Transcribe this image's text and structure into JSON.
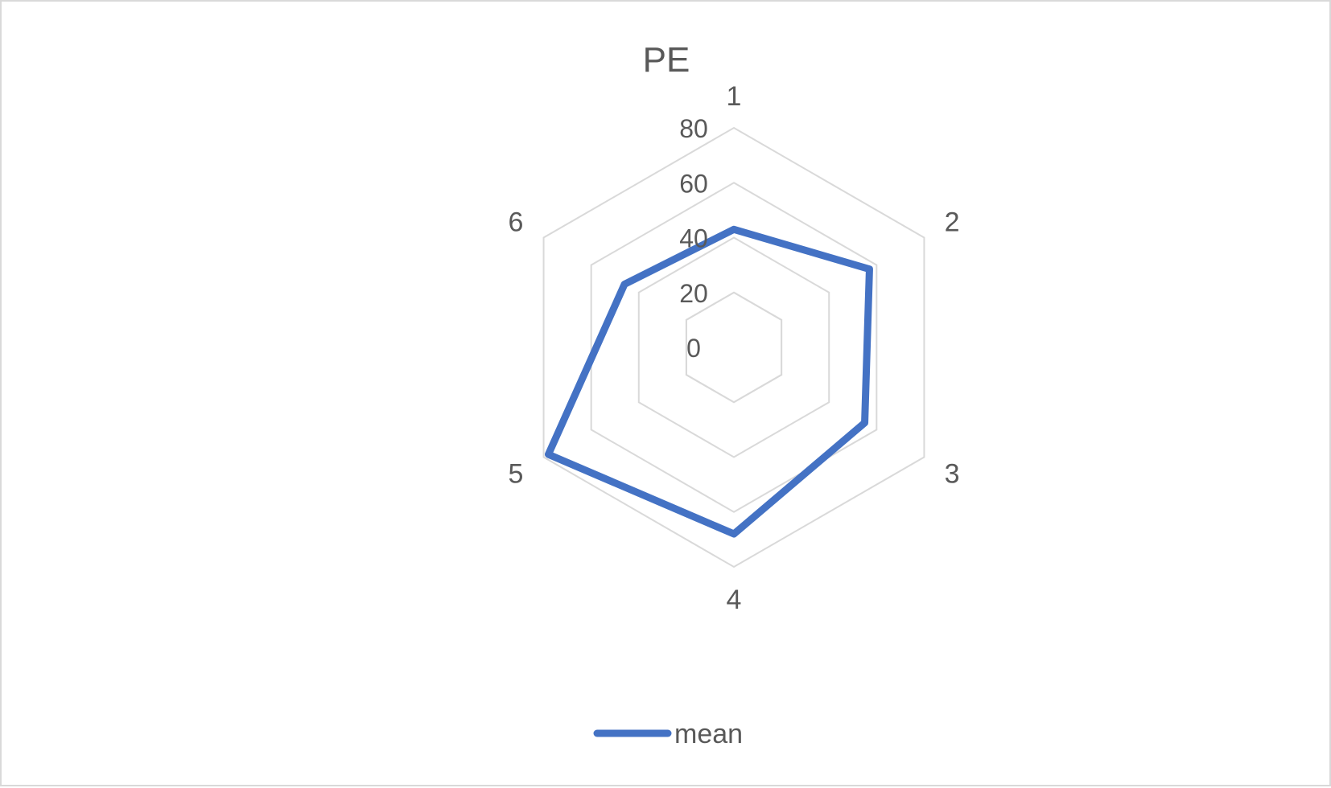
{
  "chart_data": {
    "type": "radar",
    "title": "PE",
    "categories": [
      "1",
      "2",
      "3",
      "4",
      "5",
      "6"
    ],
    "series": [
      {
        "name": "mean",
        "values": [
          43,
          57,
          55,
          68,
          78,
          46
        ]
      }
    ],
    "rlim": [
      0,
      80
    ],
    "ticks": [
      "0",
      "20",
      "40",
      "60",
      "80"
    ],
    "grid": true,
    "legend": "bottom",
    "colors": {
      "series": "#4472c4",
      "grid": "#d9d9d9",
      "text": "#595959"
    }
  }
}
